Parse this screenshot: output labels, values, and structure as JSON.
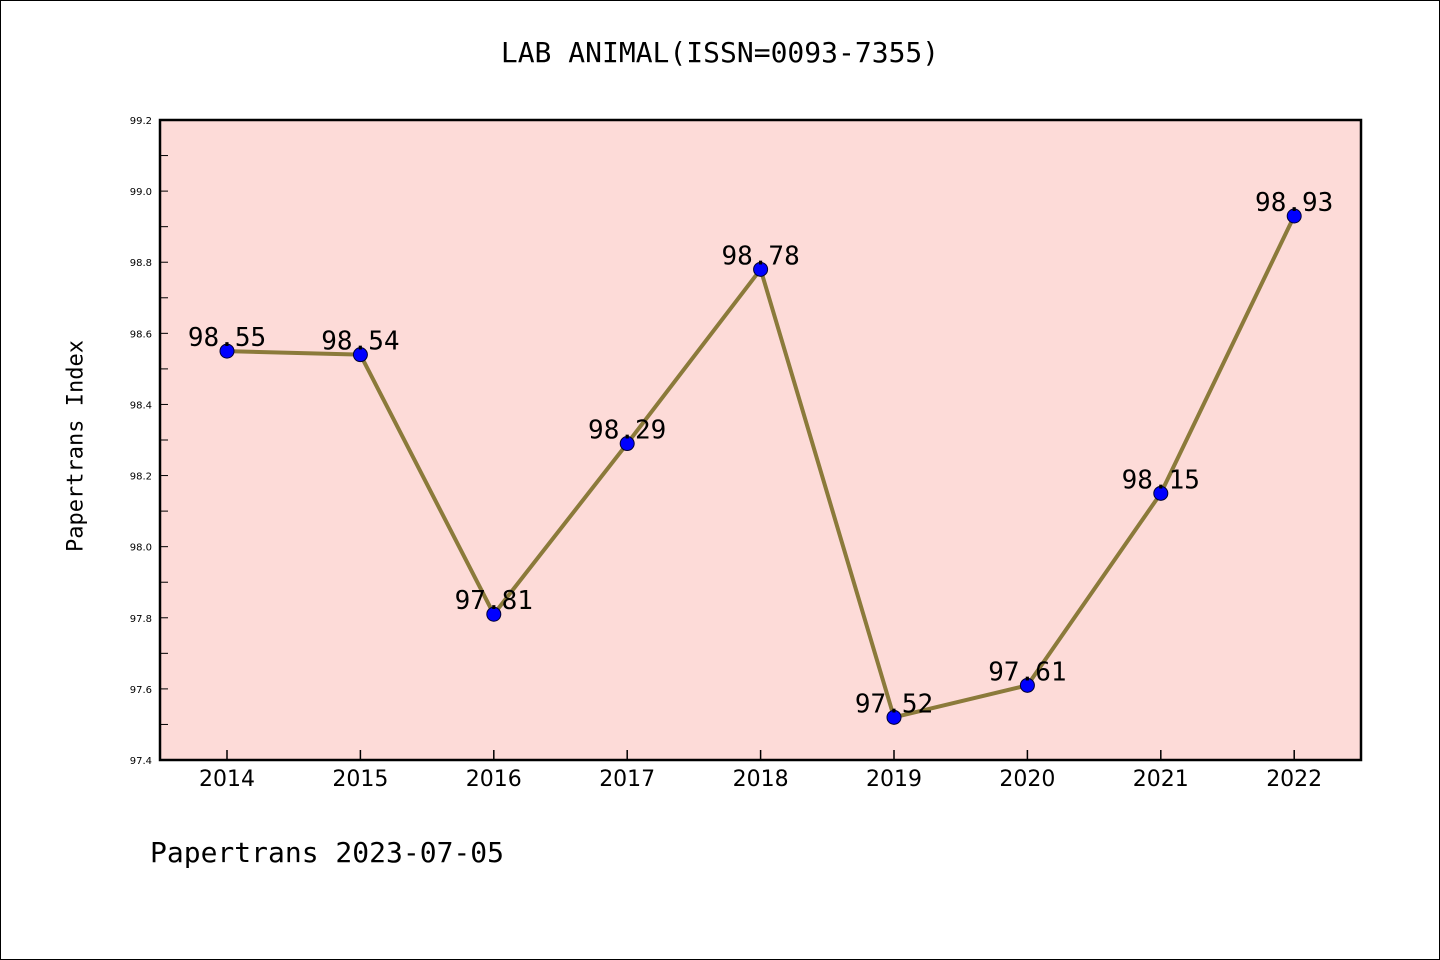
{
  "chart_data": {
    "type": "line",
    "title": "LAB ANIMAL(ISSN=0093-7355)",
    "xlabel": "",
    "ylabel": "Papertrans Index",
    "categories": [
      "2014",
      "2015",
      "2016",
      "2017",
      "2018",
      "2019",
      "2020",
      "2021",
      "2022"
    ],
    "series": [
      {
        "values": [
          98.55,
          98.54,
          97.81,
          98.29,
          98.78,
          97.52,
          97.61,
          98.15,
          98.93
        ],
        "labels": [
          "98.55",
          "98.54",
          "97.81",
          "98.29",
          "98.78",
          "97.52",
          "97.61",
          "98.15",
          "98.93"
        ]
      }
    ],
    "ylim": [
      97.4,
      99.2
    ],
    "yticks": [
      97.4,
      97.6,
      97.8,
      98.0,
      98.2,
      98.4,
      98.6,
      98.8,
      99.0,
      99.2
    ],
    "ytick_labels": [
      "97.4",
      "97.6",
      "97.8",
      "98.0",
      "98.2",
      "98.4",
      "98.6",
      "98.8",
      "99.0",
      "99.2"
    ],
    "grid": false,
    "legend": "none",
    "colors": {
      "plot_background": "#fddbd8",
      "line": "#8b7a3a",
      "marker": "#0000ff",
      "axis": "#000000"
    }
  },
  "footer": {
    "text": "Papertrans 2023-07-05"
  }
}
